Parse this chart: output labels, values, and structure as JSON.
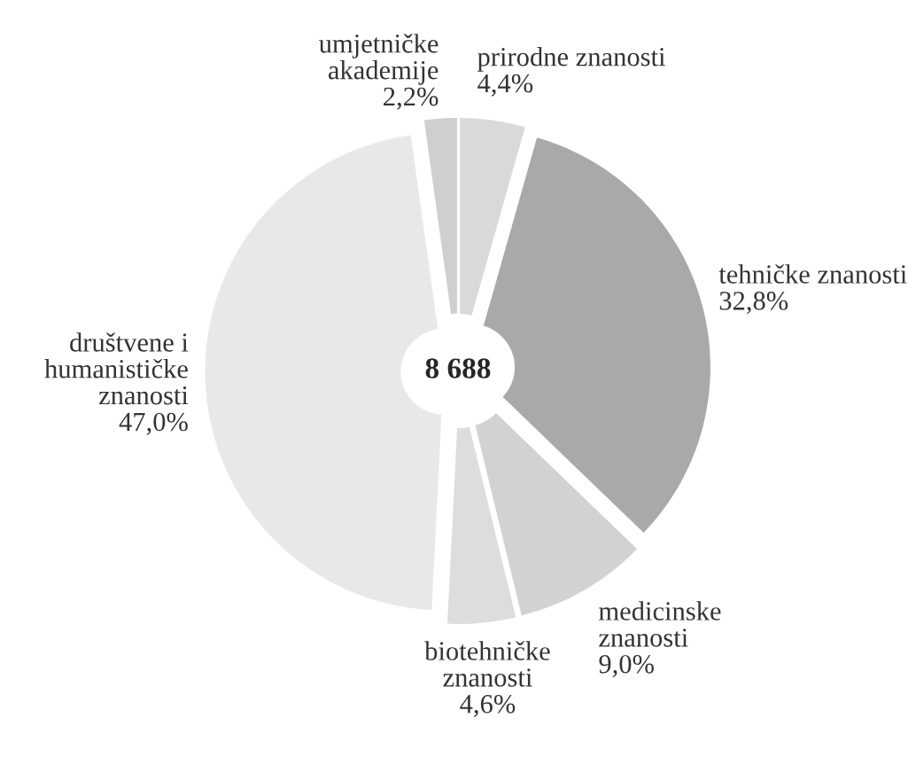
{
  "chart_data": {
    "type": "donut",
    "categories": [
      "prirodne znanosti",
      "tehničke znanosti",
      "medicinske\nznanosti",
      "biotehničke\nznanosti",
      "društvene i\nhumanističke\nznanosti",
      "umjetničke\nakademije"
    ],
    "values": [
      4.4,
      32.8,
      9.0,
      4.6,
      47.0,
      2.2
    ],
    "value_labels": [
      "4,4%",
      "32,8%",
      "9,0%",
      "4,6%",
      "47,0%",
      "2,2%"
    ],
    "colors": [
      "#d9d9d9",
      "#a9a9a9",
      "#d2d2d2",
      "#dddddd",
      "#e8e8e8",
      "#cfcfcf"
    ],
    "annotations": [
      {
        "text": "8 688"
      }
    ]
  }
}
